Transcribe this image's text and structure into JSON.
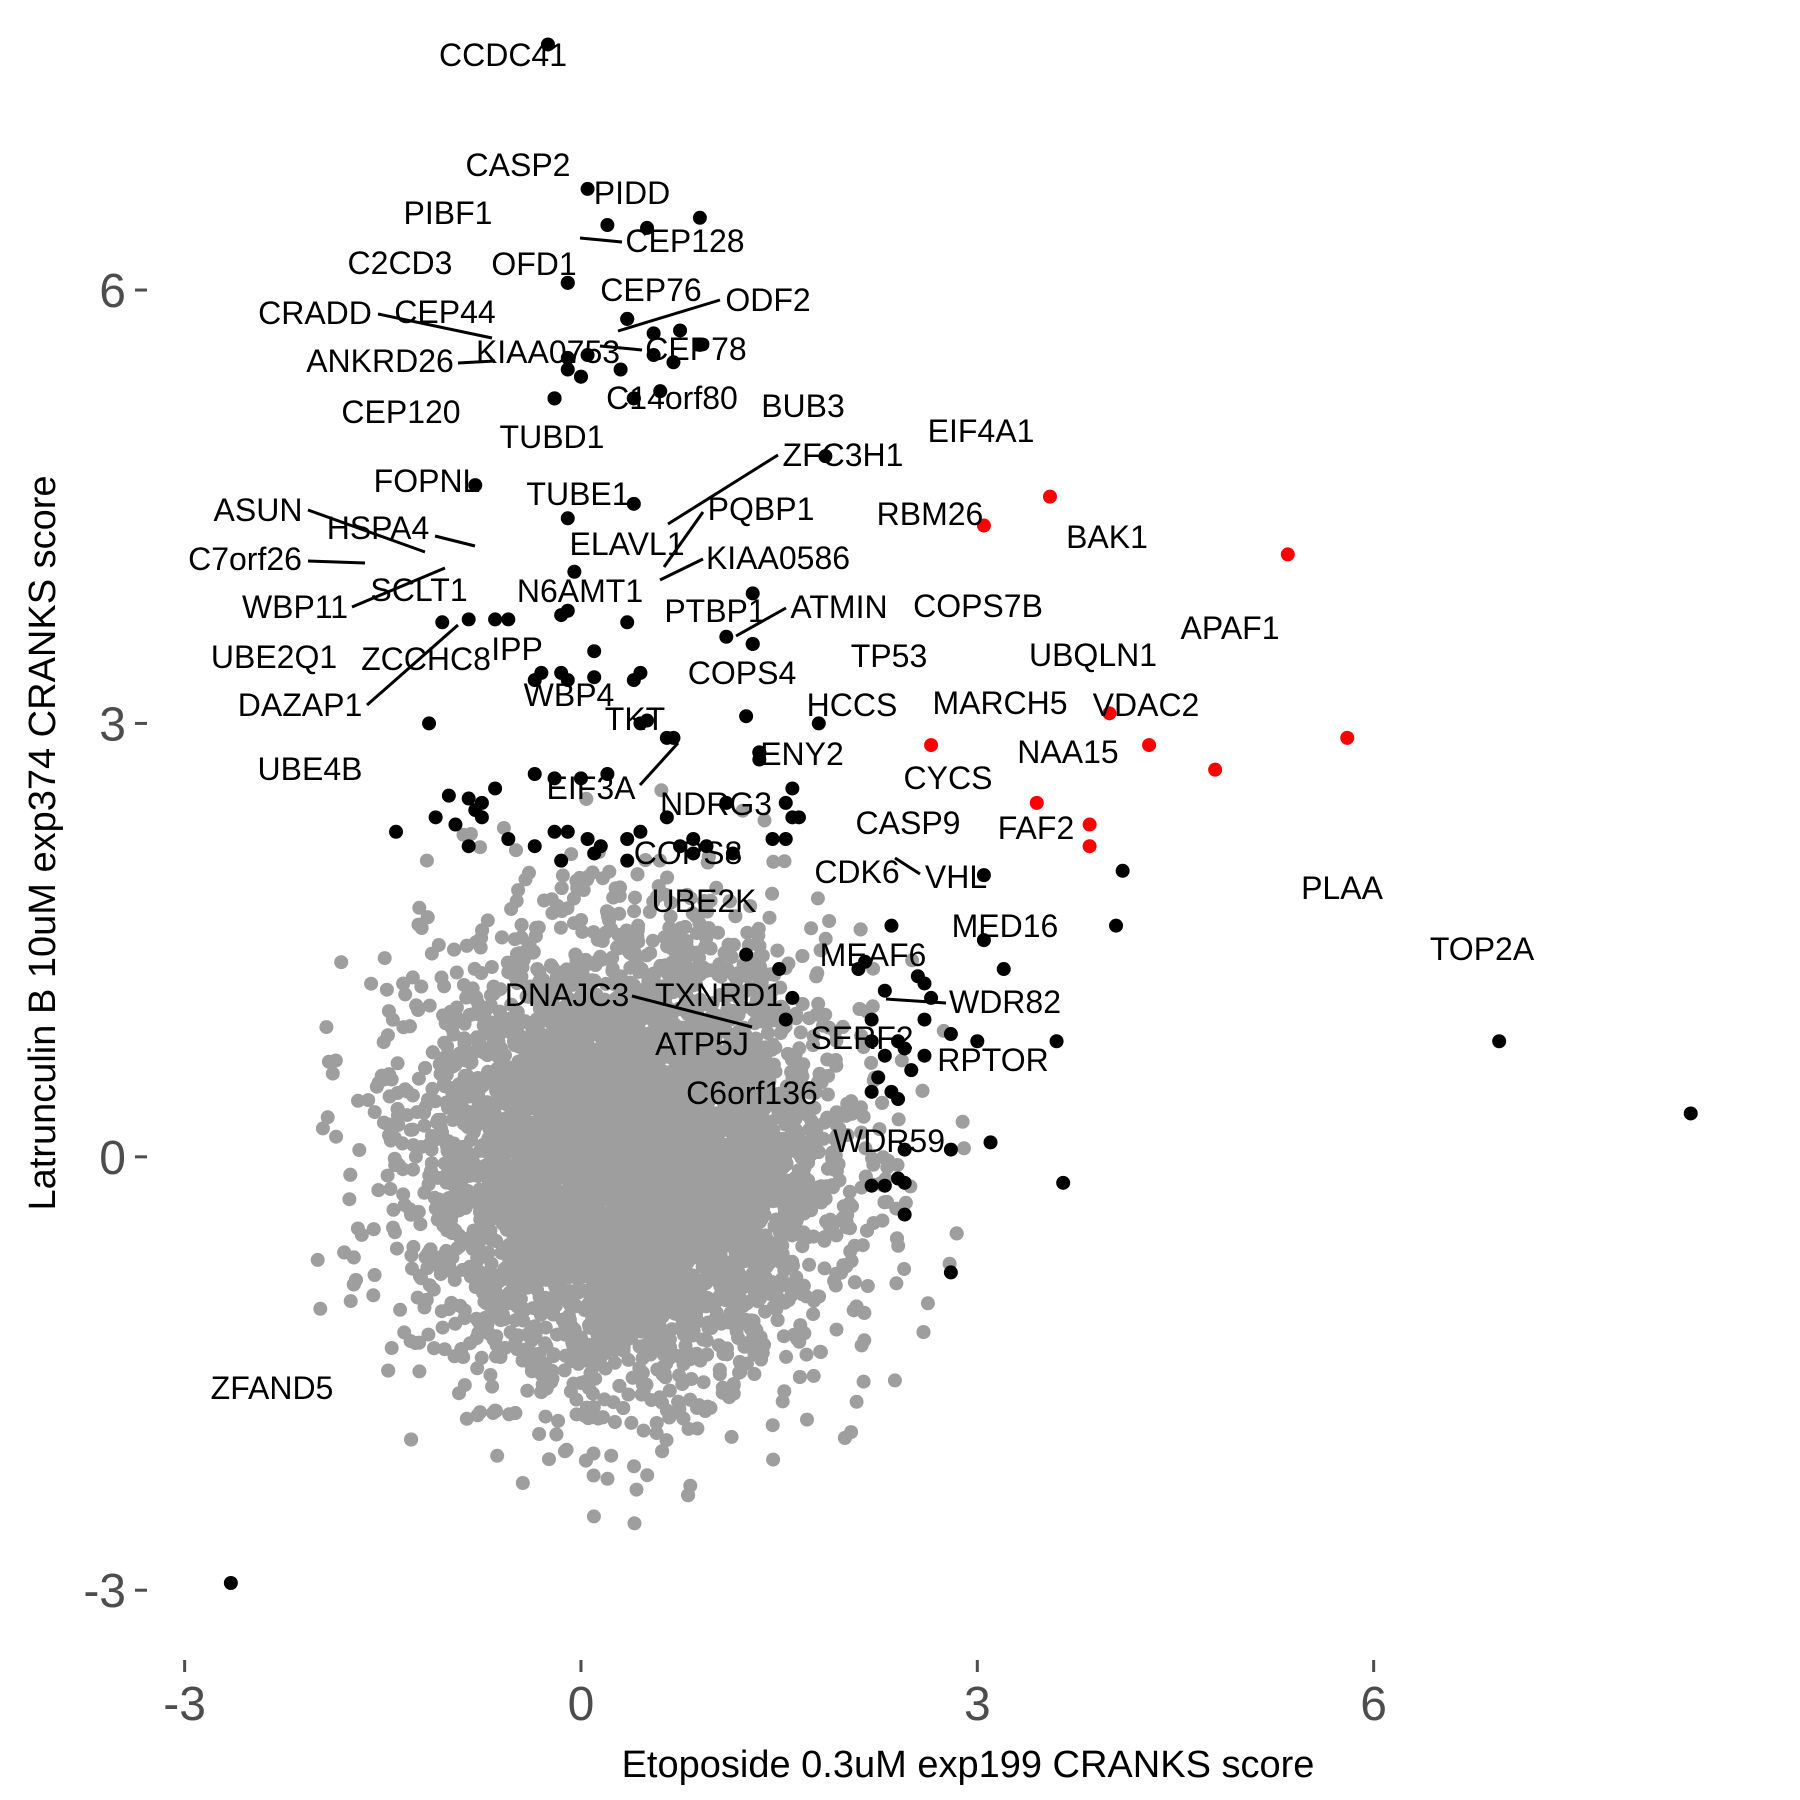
{
  "chart_data": {
    "type": "scatter",
    "title": "",
    "xlabel": "Etoposide 0.3uM exp199 CRANKS score",
    "ylabel": "Latrunculin B 10uM exp374 CRANKS score",
    "xlim": [
      -3.3,
      9.0
    ],
    "ylim": [
      -3.4,
      7.8
    ],
    "xticks": [
      -3,
      0,
      3,
      6
    ],
    "yticks": [
      -3,
      0,
      3,
      6
    ],
    "grid": false,
    "legend": "none",
    "colors": {
      "background": "#9e9e9e",
      "labeled": "#000000",
      "highlight": "#ff0000"
    },
    "background_cloud": {
      "n": 6500,
      "center": [
        0.0,
        0.0
      ],
      "spread": [
        0.75,
        0.75
      ],
      "approximate": true
    },
    "points": [
      {
        "label": "CCDC41",
        "x": -0.25,
        "y": 7.7,
        "group": "labeled"
      },
      {
        "label": "CASP2",
        "x": 0.05,
        "y": 6.7,
        "group": "labeled"
      },
      {
        "label": "PIDD",
        "x": 0.9,
        "y": 6.5,
        "group": "labeled"
      },
      {
        "label": "PIBF1",
        "x": 0.2,
        "y": 6.45,
        "group": "labeled"
      },
      {
        "label": "CEP128",
        "x": 0.5,
        "y": 6.43,
        "group": "labeled"
      },
      {
        "label": "OFD1",
        "x": -0.1,
        "y": 6.05,
        "group": "labeled"
      },
      {
        "label": "C2CD3",
        "x": 0.35,
        "y": 5.8,
        "group": "labeled"
      },
      {
        "label": "CEP76",
        "x": 0.55,
        "y": 5.7,
        "group": "labeled"
      },
      {
        "label": "ODF2",
        "x": 0.75,
        "y": 5.72,
        "group": "labeled"
      },
      {
        "label": "CEP44",
        "x": 0.05,
        "y": 5.55,
        "group": "labeled"
      },
      {
        "label": "CRADD",
        "x": -0.1,
        "y": 5.53,
        "group": "labeled"
      },
      {
        "label": "CEP78",
        "x": 0.7,
        "y": 5.5,
        "group": "labeled"
      },
      {
        "label": "KIAA0753",
        "x": 0.0,
        "y": 5.4,
        "group": "labeled"
      },
      {
        "label": "ANKRD26",
        "x": -0.2,
        "y": 5.25,
        "group": "labeled"
      },
      {
        "label": "C14orf80",
        "x": 0.4,
        "y": 5.25,
        "group": "labeled"
      },
      {
        "label": "BUB3",
        "x": 1.85,
        "y": 4.85,
        "group": "labeled"
      },
      {
        "label": "CEP120",
        "x": -0.8,
        "y": 4.65,
        "group": "labeled"
      },
      {
        "label": "TUBD1",
        "x": 0.4,
        "y": 4.52,
        "group": "labeled"
      },
      {
        "label": "FOPNL",
        "x": -0.1,
        "y": 4.42,
        "group": "labeled"
      },
      {
        "label": "EIF4A1",
        "x": 3.55,
        "y": 4.57,
        "group": "highlight"
      },
      {
        "label": "RBM26",
        "x": 3.05,
        "y": 4.37,
        "group": "highlight"
      },
      {
        "label": "BAK1",
        "x": 5.35,
        "y": 4.17,
        "group": "highlight"
      },
      {
        "label": "ZFC3H1",
        "x": 1.3,
        "y": 3.9,
        "group": "labeled"
      },
      {
        "label": "TUBE1",
        "x": -0.05,
        "y": 4.05,
        "group": "labeled"
      },
      {
        "label": "HSPA4",
        "x": -0.15,
        "y": 3.75,
        "group": "labeled"
      },
      {
        "label": "ASUN",
        "x": -0.55,
        "y": 3.72,
        "group": "labeled"
      },
      {
        "label": "C7orf26",
        "x": -1.05,
        "y": 3.7,
        "group": "labeled"
      },
      {
        "label": "ELAVL1",
        "x": 1.1,
        "y": 3.6,
        "group": "labeled"
      },
      {
        "label": "PQBP1",
        "x": 1.3,
        "y": 3.55,
        "group": "labeled"
      },
      {
        "label": "KIAA0586",
        "x": 1.3,
        "y": 3.55,
        "group": "labeled"
      },
      {
        "label": "N6AMT1",
        "x": 0.4,
        "y": 3.3,
        "group": "labeled"
      },
      {
        "label": "SCLT1",
        "x": -0.3,
        "y": 3.35,
        "group": "labeled"
      },
      {
        "label": "WBP11",
        "x": -0.35,
        "y": 3.3,
        "group": "labeled"
      },
      {
        "label": "PTBP1",
        "x": 1.25,
        "y": 3.05,
        "group": "labeled"
      },
      {
        "label": "ATMIN",
        "x": 1.8,
        "y": 3.0,
        "group": "labeled"
      },
      {
        "label": "IPP",
        "x": 0.5,
        "y": 3.02,
        "group": "labeled"
      },
      {
        "label": "COPS7B",
        "x": 4.0,
        "y": 3.07,
        "group": "highlight"
      },
      {
        "label": "APAF1",
        "x": 5.8,
        "y": 2.9,
        "group": "highlight"
      },
      {
        "label": "UBQLN1",
        "x": 4.3,
        "y": 2.85,
        "group": "highlight"
      },
      {
        "label": "TP53",
        "x": 2.65,
        "y": 2.85,
        "group": "highlight"
      },
      {
        "label": "UBE2Q1",
        "x": -1.15,
        "y": 3.0,
        "group": "labeled"
      },
      {
        "label": "ZCCHC8",
        "x": 0.7,
        "y": 2.9,
        "group": "labeled"
      },
      {
        "label": "COPS4",
        "x": 1.35,
        "y": 2.8,
        "group": "labeled"
      },
      {
        "label": "WBP4",
        "x": 0.0,
        "y": 2.62,
        "group": "labeled"
      },
      {
        "label": "VDAC2",
        "x": 4.8,
        "y": 2.68,
        "group": "highlight"
      },
      {
        "label": "DAZAP1",
        "x": -1.0,
        "y": 2.5,
        "group": "labeled"
      },
      {
        "label": "HCCS",
        "x": 3.45,
        "y": 2.45,
        "group": "highlight"
      },
      {
        "label": "MARCH5",
        "x": 3.85,
        "y": 2.3,
        "group": "highlight"
      },
      {
        "label": "TKT",
        "x": 1.65,
        "y": 2.35,
        "group": "labeled"
      },
      {
        "label": "EIF3A",
        "x": 1.55,
        "y": 2.2,
        "group": "labeled"
      },
      {
        "label": "UBE4B",
        "x": -1.4,
        "y": 2.25,
        "group": "labeled"
      },
      {
        "label": "NAA15",
        "x": 3.85,
        "y": 2.15,
        "group": "highlight"
      },
      {
        "label": "CYCS",
        "x": 4.1,
        "y": 1.98,
        "group": "labeled"
      },
      {
        "label": "ENY2",
        "x": 3.05,
        "y": 1.95,
        "group": "labeled"
      },
      {
        "label": "NDRG3",
        "x": 2.35,
        "y": 1.6,
        "group": "labeled"
      },
      {
        "label": "FAF2",
        "x": 4.05,
        "y": 1.6,
        "group": "labeled"
      },
      {
        "label": "CASP9",
        "x": 3.05,
        "y": 1.5,
        "group": "labeled"
      },
      {
        "label": "COPS8",
        "x": 2.15,
        "y": 1.35,
        "group": "labeled"
      },
      {
        "label": "VHL",
        "x": 3.2,
        "y": 1.3,
        "group": "labeled"
      },
      {
        "label": "CDK6",
        "x": 2.6,
        "y": 1.2,
        "group": "labeled"
      },
      {
        "label": "UBE2K",
        "x": 2.2,
        "y": 0.95,
        "group": "labeled"
      },
      {
        "label": "PLAA",
        "x": 6.95,
        "y": 0.8,
        "group": "labeled"
      },
      {
        "label": "MED16",
        "x": 3.6,
        "y": 0.8,
        "group": "labeled"
      },
      {
        "label": "MEAF6",
        "x": 2.35,
        "y": 0.45,
        "group": "labeled"
      },
      {
        "label": "TOP2A",
        "x": 8.4,
        "y": 0.3,
        "group": "labeled"
      },
      {
        "label": "DNAJC3",
        "x": 2.3,
        "y": -0.2,
        "group": "labeled"
      },
      {
        "label": "TXNRD1",
        "x": 2.45,
        "y": 0.05,
        "group": "labeled"
      },
      {
        "label": "WDR82",
        "x": 3.1,
        "y": 0.1,
        "group": "labeled"
      },
      {
        "label": "ATP5J",
        "x": 2.2,
        "y": -0.2,
        "group": "labeled"
      },
      {
        "label": "SERF2",
        "x": 2.45,
        "y": -0.18,
        "group": "labeled"
      },
      {
        "label": "RPTOR",
        "x": 3.65,
        "y": -0.18,
        "group": "labeled"
      },
      {
        "label": "C6orf136",
        "x": 2.45,
        "y": -0.4,
        "group": "labeled"
      },
      {
        "label": "WDR59",
        "x": 2.8,
        "y": -0.8,
        "group": "labeled"
      },
      {
        "label": "ZFAND5",
        "x": -2.65,
        "y": -2.95,
        "group": "labeled"
      }
    ],
    "extra_points": [
      [
        -0.1,
        6.05
      ],
      [
        0.35,
        5.8
      ],
      [
        0.9,
        5.62
      ],
      [
        -0.1,
        5.45
      ],
      [
        0.55,
        5.55
      ],
      [
        0.3,
        5.45
      ],
      [
        0.6,
        5.3
      ],
      [
        -0.2,
        5.25
      ],
      [
        0.4,
        5.25
      ],
      [
        0.0,
        5.4
      ],
      [
        -0.85,
        3.72
      ],
      [
        -0.65,
        3.72
      ],
      [
        -0.1,
        3.78
      ],
      [
        0.35,
        3.7
      ],
      [
        0.1,
        3.5
      ],
      [
        -0.1,
        3.3
      ],
      [
        -0.15,
        3.35
      ],
      [
        0.1,
        3.32
      ],
      [
        0.45,
        3.35
      ],
      [
        0.45,
        3.0
      ],
      [
        0.65,
        2.9
      ],
      [
        1.35,
        2.75
      ],
      [
        1.35,
        2.8
      ],
      [
        1.6,
        2.55
      ],
      [
        -0.35,
        2.65
      ],
      [
        -0.2,
        2.62
      ],
      [
        0.2,
        2.65
      ],
      [
        -0.65,
        2.55
      ],
      [
        -0.75,
        2.45
      ],
      [
        -0.8,
        2.4
      ],
      [
        -0.75,
        2.35
      ],
      [
        -0.85,
        2.48
      ],
      [
        -1.1,
        2.35
      ],
      [
        -0.95,
        2.3
      ],
      [
        -0.55,
        2.2
      ],
      [
        -0.2,
        2.25
      ],
      [
        -0.1,
        2.25
      ],
      [
        0.05,
        2.2
      ],
      [
        0.15,
        2.15
      ],
      [
        0.35,
        2.2
      ],
      [
        0.45,
        2.25
      ],
      [
        0.65,
        2.35
      ],
      [
        0.75,
        2.15
      ],
      [
        0.85,
        2.2
      ],
      [
        0.95,
        2.15
      ],
      [
        1.1,
        2.45
      ],
      [
        1.6,
        2.35
      ],
      [
        1.55,
        2.45
      ],
      [
        -0.85,
        2.15
      ],
      [
        -0.35,
        2.15
      ],
      [
        -0.15,
        2.05
      ],
      [
        0.1,
        2.1
      ],
      [
        0.35,
        2.05
      ],
      [
        0.85,
        2.1
      ],
      [
        1.15,
        2.1
      ],
      [
        1.45,
        2.2
      ],
      [
        2.1,
        1.3
      ],
      [
        2.3,
        1.15
      ],
      [
        2.55,
        1.25
      ],
      [
        2.65,
        1.1
      ],
      [
        2.6,
        0.95
      ],
      [
        2.8,
        0.85
      ],
      [
        3.0,
        0.8
      ],
      [
        2.2,
        0.8
      ],
      [
        2.4,
        0.8
      ],
      [
        2.3,
        0.7
      ],
      [
        2.45,
        0.75
      ],
      [
        2.6,
        0.7
      ],
      [
        2.25,
        0.55
      ],
      [
        2.5,
        0.6
      ],
      [
        2.2,
        0.45
      ],
      [
        2.4,
        0.4
      ],
      [
        2.8,
        0.05
      ],
      [
        2.4,
        -0.15
      ],
      [
        1.25,
        1.4
      ],
      [
        1.5,
        1.3
      ],
      [
        1.6,
        1.1
      ],
      [
        1.55,
        0.95
      ]
    ]
  }
}
